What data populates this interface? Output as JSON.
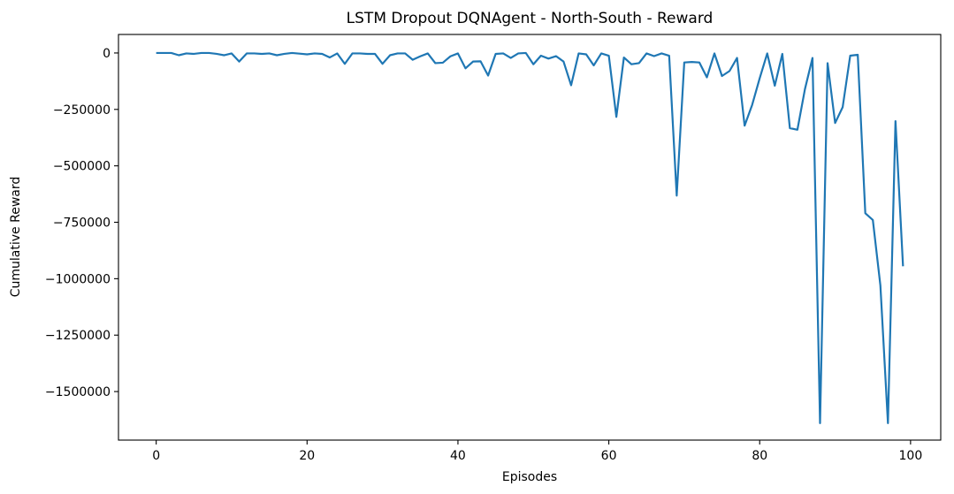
{
  "chart_data": {
    "type": "line",
    "title": "LSTM Dropout DQNAgent - North-South - Reward",
    "xlabel": "Episodes",
    "ylabel": "Cumulative Reward",
    "xlim": [
      -5,
      104
    ],
    "ylim": [
      -1715000,
      82000
    ],
    "xticks": [
      0,
      20,
      40,
      60,
      80,
      100
    ],
    "yticks": [
      0,
      -250000,
      -500000,
      -750000,
      -1000000,
      -1250000,
      -1500000
    ],
    "ytick_labels": [
      "0",
      "−250000",
      "−500000",
      "−750000",
      "−1000000",
      "−1250000",
      "−1500000"
    ],
    "grid": false,
    "color": "#1f77b4",
    "series": [
      {
        "x": [
          0,
          1,
          2,
          3,
          4,
          5,
          6,
          7,
          8,
          9,
          10,
          11,
          12,
          13,
          14,
          15,
          16,
          17,
          18,
          19,
          20,
          21,
          22,
          23,
          24,
          25,
          26,
          27,
          28,
          29,
          30,
          31,
          32,
          33,
          34,
          35,
          36,
          37,
          38,
          39,
          40,
          41,
          42,
          43,
          44,
          45,
          46,
          47,
          48,
          49,
          50,
          51,
          52,
          53,
          54,
          55,
          56,
          57,
          58,
          59,
          60,
          61,
          62,
          63,
          64,
          65,
          66,
          67,
          68,
          69,
          70,
          71,
          72,
          73,
          74,
          75,
          76,
          77,
          78,
          79,
          80,
          81,
          82,
          83,
          84,
          85,
          86,
          87,
          88,
          89,
          90,
          91,
          92,
          93,
          94,
          95,
          96,
          97,
          98,
          99
        ],
        "values": [
          0,
          0,
          0,
          -10000,
          -2000,
          -4000,
          0,
          0,
          -4000,
          -10000,
          -2000,
          -38000,
          -2000,
          -2000,
          -4000,
          -2000,
          -10000,
          -4000,
          0,
          -3000,
          -6000,
          -2000,
          -4000,
          -20000,
          -2000,
          -48000,
          -2000,
          -2000,
          -4000,
          -4000,
          -48000,
          -10000,
          -2000,
          -2000,
          -30000,
          -15000,
          -2000,
          -45000,
          -43000,
          -15000,
          -2000,
          -68000,
          -38000,
          -37000,
          -100000,
          -4000,
          -2000,
          -22000,
          -2000,
          0,
          -50000,
          -12000,
          -25000,
          -14000,
          -38000,
          -143000,
          -2000,
          -6000,
          -55000,
          -2000,
          -12000,
          -283000,
          -20000,
          -50000,
          -45000,
          -2000,
          -14000,
          -2000,
          -12000,
          -632000,
          -42000,
          -40000,
          -42000,
          -108000,
          -2000,
          -102000,
          -80000,
          -22000,
          -322000,
          -230000,
          -112000,
          -2000,
          -145000,
          -4000,
          -333000,
          -340000,
          -160000,
          -22000,
          -1640000,
          -45000,
          -310000,
          -240000,
          -12000,
          -8000,
          -710000,
          -740000,
          -1030000,
          -1640000,
          -302000,
          -945000
        ]
      }
    ]
  }
}
